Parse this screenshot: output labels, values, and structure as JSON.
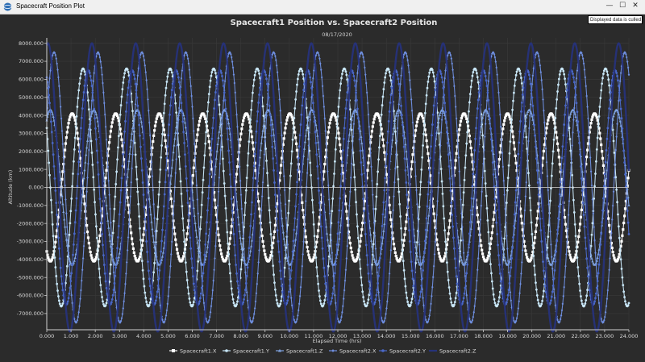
{
  "window": {
    "title": "Spacecraft Position Plot",
    "minimize_label": "—",
    "maximize_label": "☐",
    "close_label": "✕"
  },
  "tooltip": {
    "text": "Displayed data is culled"
  },
  "colors": {
    "background": "#2b2b2b",
    "grid": "#3a3a3a",
    "axis": "#d0d0d0",
    "text": "#d8d8d8"
  },
  "chart_data": {
    "type": "line",
    "title": "Spacecraft1 Position vs. Spacecraft2 Position",
    "subtitle": "08/17/2020",
    "xlabel": "Elapsed Time (hrs)",
    "ylabel": "Altitude (km)",
    "xlim": [
      0,
      24
    ],
    "ylim": [
      -7900,
      8300
    ],
    "x_ticks": [
      "0.000",
      "1.000",
      "2.000",
      "3.000",
      "4.000",
      "5.000",
      "6.000",
      "7.000",
      "8.000",
      "9.000",
      "10.000",
      "11.000",
      "12.000",
      "13.000",
      "14.000",
      "15.000",
      "16.000",
      "17.000",
      "18.000",
      "19.000",
      "20.000",
      "21.000",
      "22.000",
      "23.000",
      "24.000"
    ],
    "y_ticks": [
      "8000.000",
      "7000.000",
      "6000.000",
      "5000.000",
      "4000.000",
      "3000.000",
      "2000.000",
      "1000.000",
      "0.000",
      "-1000.000",
      "-2000.000",
      "-3000.000",
      "-4000.000",
      "-5000.000",
      "-6000.000",
      "-7000.000"
    ],
    "y_tick_values": [
      8000,
      7000,
      6000,
      5000,
      4000,
      3000,
      2000,
      1000,
      0,
      -1000,
      -2000,
      -3000,
      -4000,
      -5000,
      -6000,
      -7000
    ],
    "grid": true,
    "legend_position": "bottom",
    "series_model": "sinusoid",
    "series": [
      {
        "name": "Spacecraft1.X",
        "color": "#ffffff",
        "marker": "square",
        "amplitude": 4100,
        "period_hrs": 1.795,
        "phase_deg": 240
      },
      {
        "name": "Spacecraft1.Y",
        "color": "#c8e6f7",
        "marker": "circle",
        "amplitude": 6600,
        "period_hrs": 1.795,
        "phase_deg": 150
      },
      {
        "name": "Spacecraft1.Z",
        "color": "#7fa3e0",
        "marker": "triangle",
        "amplitude": 4300,
        "period_hrs": 1.795,
        "phase_deg": 60
      },
      {
        "name": "Spacecraft2.X",
        "color": "#6f8fe0",
        "marker": "diamond",
        "amplitude": 7500,
        "period_hrs": 1.81,
        "phase_deg": 30
      },
      {
        "name": "Spacecraft2.Y",
        "color": "#4a68c8",
        "marker": "circle",
        "amplitude": 6500,
        "period_hrs": 1.81,
        "phase_deg": 110
      },
      {
        "name": "Spacecraft2.Z",
        "color": "#26327a",
        "marker": "line",
        "amplitude": 8000,
        "period_hrs": 1.81,
        "phase_deg": 80
      }
    ]
  }
}
